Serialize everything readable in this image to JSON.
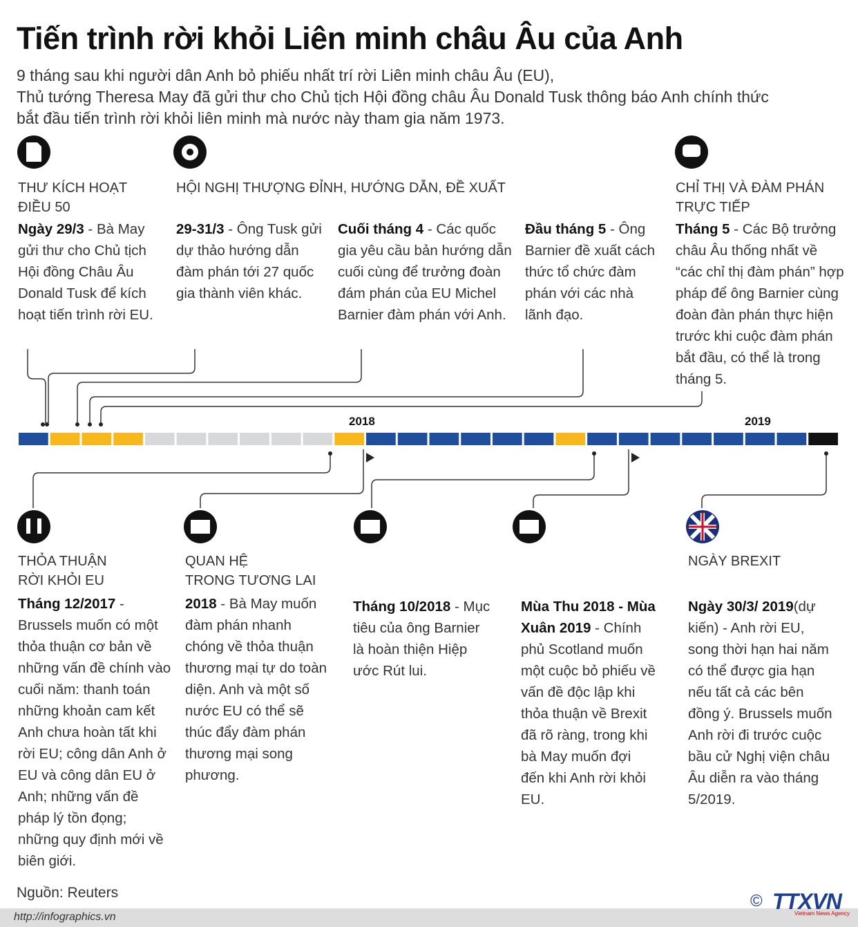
{
  "header": {
    "title": "Tiến trình rời khỏi Liên minh châu Âu của Anh",
    "subtitle": [
      "9 tháng sau khi người dân Anh bỏ phiếu nhất trí rời Liên minh châu Âu (EU),",
      "Thủ tướng Theresa May đã gửi thư cho Chủ tịch Hội đồng châu Âu Donald Tusk thông báo Anh chính thức",
      "bắt đầu tiến trình rời khỏi  liên minh mà nước này tham gia năm 1973."
    ]
  },
  "top_headings": [
    [
      "THƯ KÍCH HOẠT",
      "ĐIỀU 50"
    ],
    [
      "HỘI NGHỊ THƯỢNG ĐỈNH, HƯỚNG DẪN, ĐỀ XUẤT"
    ],
    [
      "CHỈ THỊ VÀ ĐÀM PHÁN",
      "TRỰC TIẾP"
    ]
  ],
  "top_events": [
    {
      "date": "Ngày 29/3",
      "text": " - Bà May gửi thư cho Chủ tịch Hội đồng Châu Âu Donald Tusk để kích hoạt tiến trình rời EU."
    },
    {
      "date": "29-31/3",
      "text": " - Ông Tusk gửi dự thảo hướng dẫn đàm phán tới 27 quốc gia thành viên khác."
    },
    {
      "date": "Cuối tháng 4",
      "text": " - Các quốc gia yêu cầu bản hướng dẫn cuối cùng để trưởng đoàn đám phán của EU Michel Barnier đàm phán với Anh."
    },
    {
      "date": "Đầu tháng 5",
      "text": " - Ông Barnier đề xuất cách thức tổ chức đàm phán với các nhà lãnh đạo."
    },
    {
      "date": "Tháng 5",
      "text": " - Các Bộ trưởng châu Âu thống nhất về “các chỉ thị đàm phán” hợp pháp để ông Barnier cùng đoàn đàn phán thực hiện trước khi cuộc đàm phán bắt đầu, có thể là trong tháng 5."
    }
  ],
  "years": [
    "2018",
    "2019"
  ],
  "bottom_headings": [
    [
      "THỎA THUẬN",
      "RỜI KHỎI EU"
    ],
    [
      "QUAN HỆ",
      "TRONG TƯƠNG LAI"
    ],
    [
      "NGÀY BREXIT"
    ]
  ],
  "bottom_events": [
    {
      "date": "Tháng 12/2017",
      "text": " - Brussels muốn có một thỏa thuận cơ bản về những vấn đề chính vào cuối năm: thanh toán những khoản cam kết Anh chưa hoàn tất khi rời EU; công dân Anh ở EU và công dân EU ở Anh; những vấn đề pháp lý tồn đọng; những quy định mới về biên giới."
    },
    {
      "date": "2018",
      "text": " - Bà May muốn đàm phán nhanh chóng về thỏa thuận thương mại tự do toàn diện. Anh và một số nước EU có thể sẽ thúc đẩy đàm phán thương mại song phương."
    },
    {
      "date": "Tháng 10/2018",
      "text": " - Mục tiêu của ông Barnier là hoàn thiện Hiệp ước Rút lui."
    },
    {
      "date": "Mùa Thu 2018 - Mùa Xuân 2019",
      "text": " - Chính phủ Scotland muốn một cuộc bỏ phiếu về vấn đề độc lập khi thỏa thuận về Brexit đã rõ ràng, trong khi bà May muốn đợi đến khi Anh rời khỏi EU."
    },
    {
      "date": "Ngày 30/3/ 2019",
      "text": "(dự kiến) - Anh rời EU, song thời hạn hai năm có thể được gia hạn nếu tất cả các bên đồng ý. Brussels muốn Anh rời đi trước cuộc bầu cử Nghị viện châu Âu diễn ra vào tháng 5/2019."
    }
  ],
  "footer": {
    "source": "Nguồn: Reuters",
    "url": "http://infographics.vn",
    "copyright": "©",
    "logo": "TTXVN",
    "agency": "Vietnam News Agency"
  }
}
